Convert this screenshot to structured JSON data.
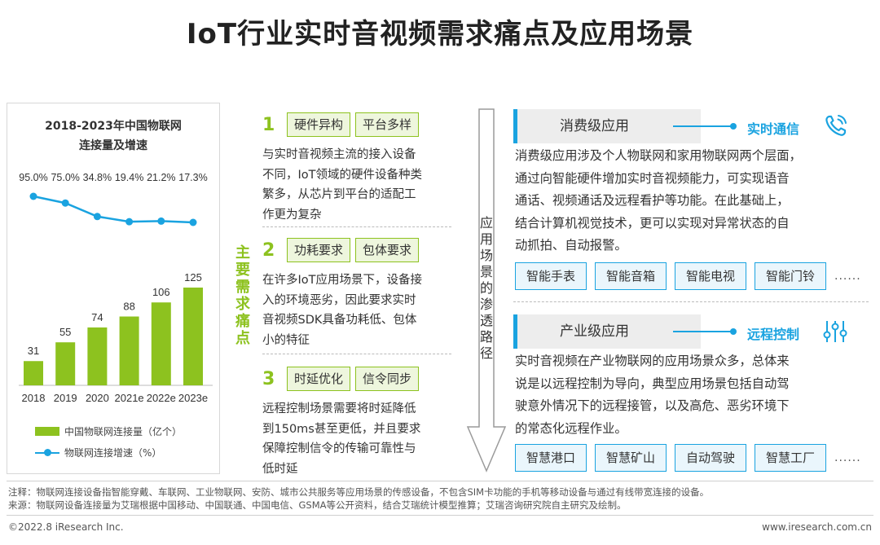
{
  "title": "IoT行业实时音视频需求痛点及应用场景",
  "chart_data": {
    "type": "bar",
    "title_line1": "2018-2023年中国物联网",
    "title_line2": "连接量及增速",
    "categories": [
      "2018",
      "2019",
      "2020",
      "2021e",
      "2022e",
      "2023e"
    ],
    "series": [
      {
        "name": "中国物联网连接量（亿个）",
        "type": "bar",
        "values": [
          31,
          55,
          74,
          88,
          106,
          125
        ],
        "labels": [
          "31",
          "55",
          "74",
          "88",
          "106",
          "125"
        ],
        "color": "#8dc21f"
      },
      {
        "name": "物联网连接增速（%）",
        "type": "line",
        "values": [
          95.0,
          75.0,
          34.8,
          19.4,
          21.2,
          17.3
        ],
        "labels": [
          "95.0%",
          "75.0%",
          "34.8%",
          "19.4%",
          "21.2%",
          "17.3%"
        ],
        "color": "#1aa3e0"
      }
    ]
  },
  "pain_label": "主要需求痛点",
  "pain_points": [
    {
      "num": "1",
      "tags": [
        "硬件异构",
        "平台多样"
      ],
      "lines": [
        "与实时音视频主流的接入设备",
        "不同，IoT领域的硬件设备种类",
        "繁多，从芯片到平台的适配工",
        "作更为复杂"
      ]
    },
    {
      "num": "2",
      "tags": [
        "功耗要求",
        "包体要求"
      ],
      "lines": [
        "在许多IoT应用场景下，设备接",
        "入的环境恶劣，因此要求实时",
        "音视频SDK具备功耗低、包体",
        "小的特征"
      ]
    },
    {
      "num": "3",
      "tags": [
        "时延优化",
        "信令同步"
      ],
      "lines": [
        "远程控制场景需要将时延降低",
        "到150ms甚至更低，并且要求",
        "保障控制信令的传输可靠性与",
        "低时延"
      ]
    }
  ],
  "arrow_label": "应用场景的渗透路径",
  "consumer": {
    "heading": "消费级应用",
    "highlight": "实时通信",
    "icon": "phone-icon",
    "lines": [
      "消费级应用涉及个人物联网和家用物联网两个层面，",
      "通过向智能硬件增加实时音视频能力，可实现语音",
      "通话、视频通话及远程看护等功能。在此基础上，",
      "结合计算机视觉技术，更可以实现对异常状态的自",
      "动抓拍、自动报警。"
    ],
    "tags": [
      "智能手表",
      "智能音箱",
      "智能电视",
      "智能门铃"
    ],
    "more": "......"
  },
  "industrial": {
    "heading": "产业级应用",
    "highlight": "远程控制",
    "icon": "sliders-icon",
    "lines": [
      "实时音视频在产业物联网的应用场景众多，总体来",
      "说是以远程控制为导向，典型应用场景包括自动驾",
      "驶意外情况下的远程接管，以及高危、恶劣环境下",
      "的常态化远程作业。"
    ],
    "tags": [
      "智慧港口",
      "智慧矿山",
      "自动驾驶",
      "智慧工厂"
    ],
    "more": "......"
  },
  "note1": "注释：物联网连接设备指智能穿戴、车联网、工业物联网、安防、城市公共服务等应用场景的传感设备，不包含SIM卡功能的手机等移动设备与通过有线带宽连接的设备。",
  "note2": "来源：物联网设备连接量为艾瑞根据中国移动、中国联通、中国电信、GSMA等公开资料，结合艾瑞统计模型推算；艾瑞咨询研究院自主研究及绘制。",
  "footer_left": "©2022.8 iResearch Inc.",
  "footer_right": "www.iresearch.com.cn",
  "colors": {
    "green": "#8dc21f",
    "blue": "#1aa3e0"
  }
}
